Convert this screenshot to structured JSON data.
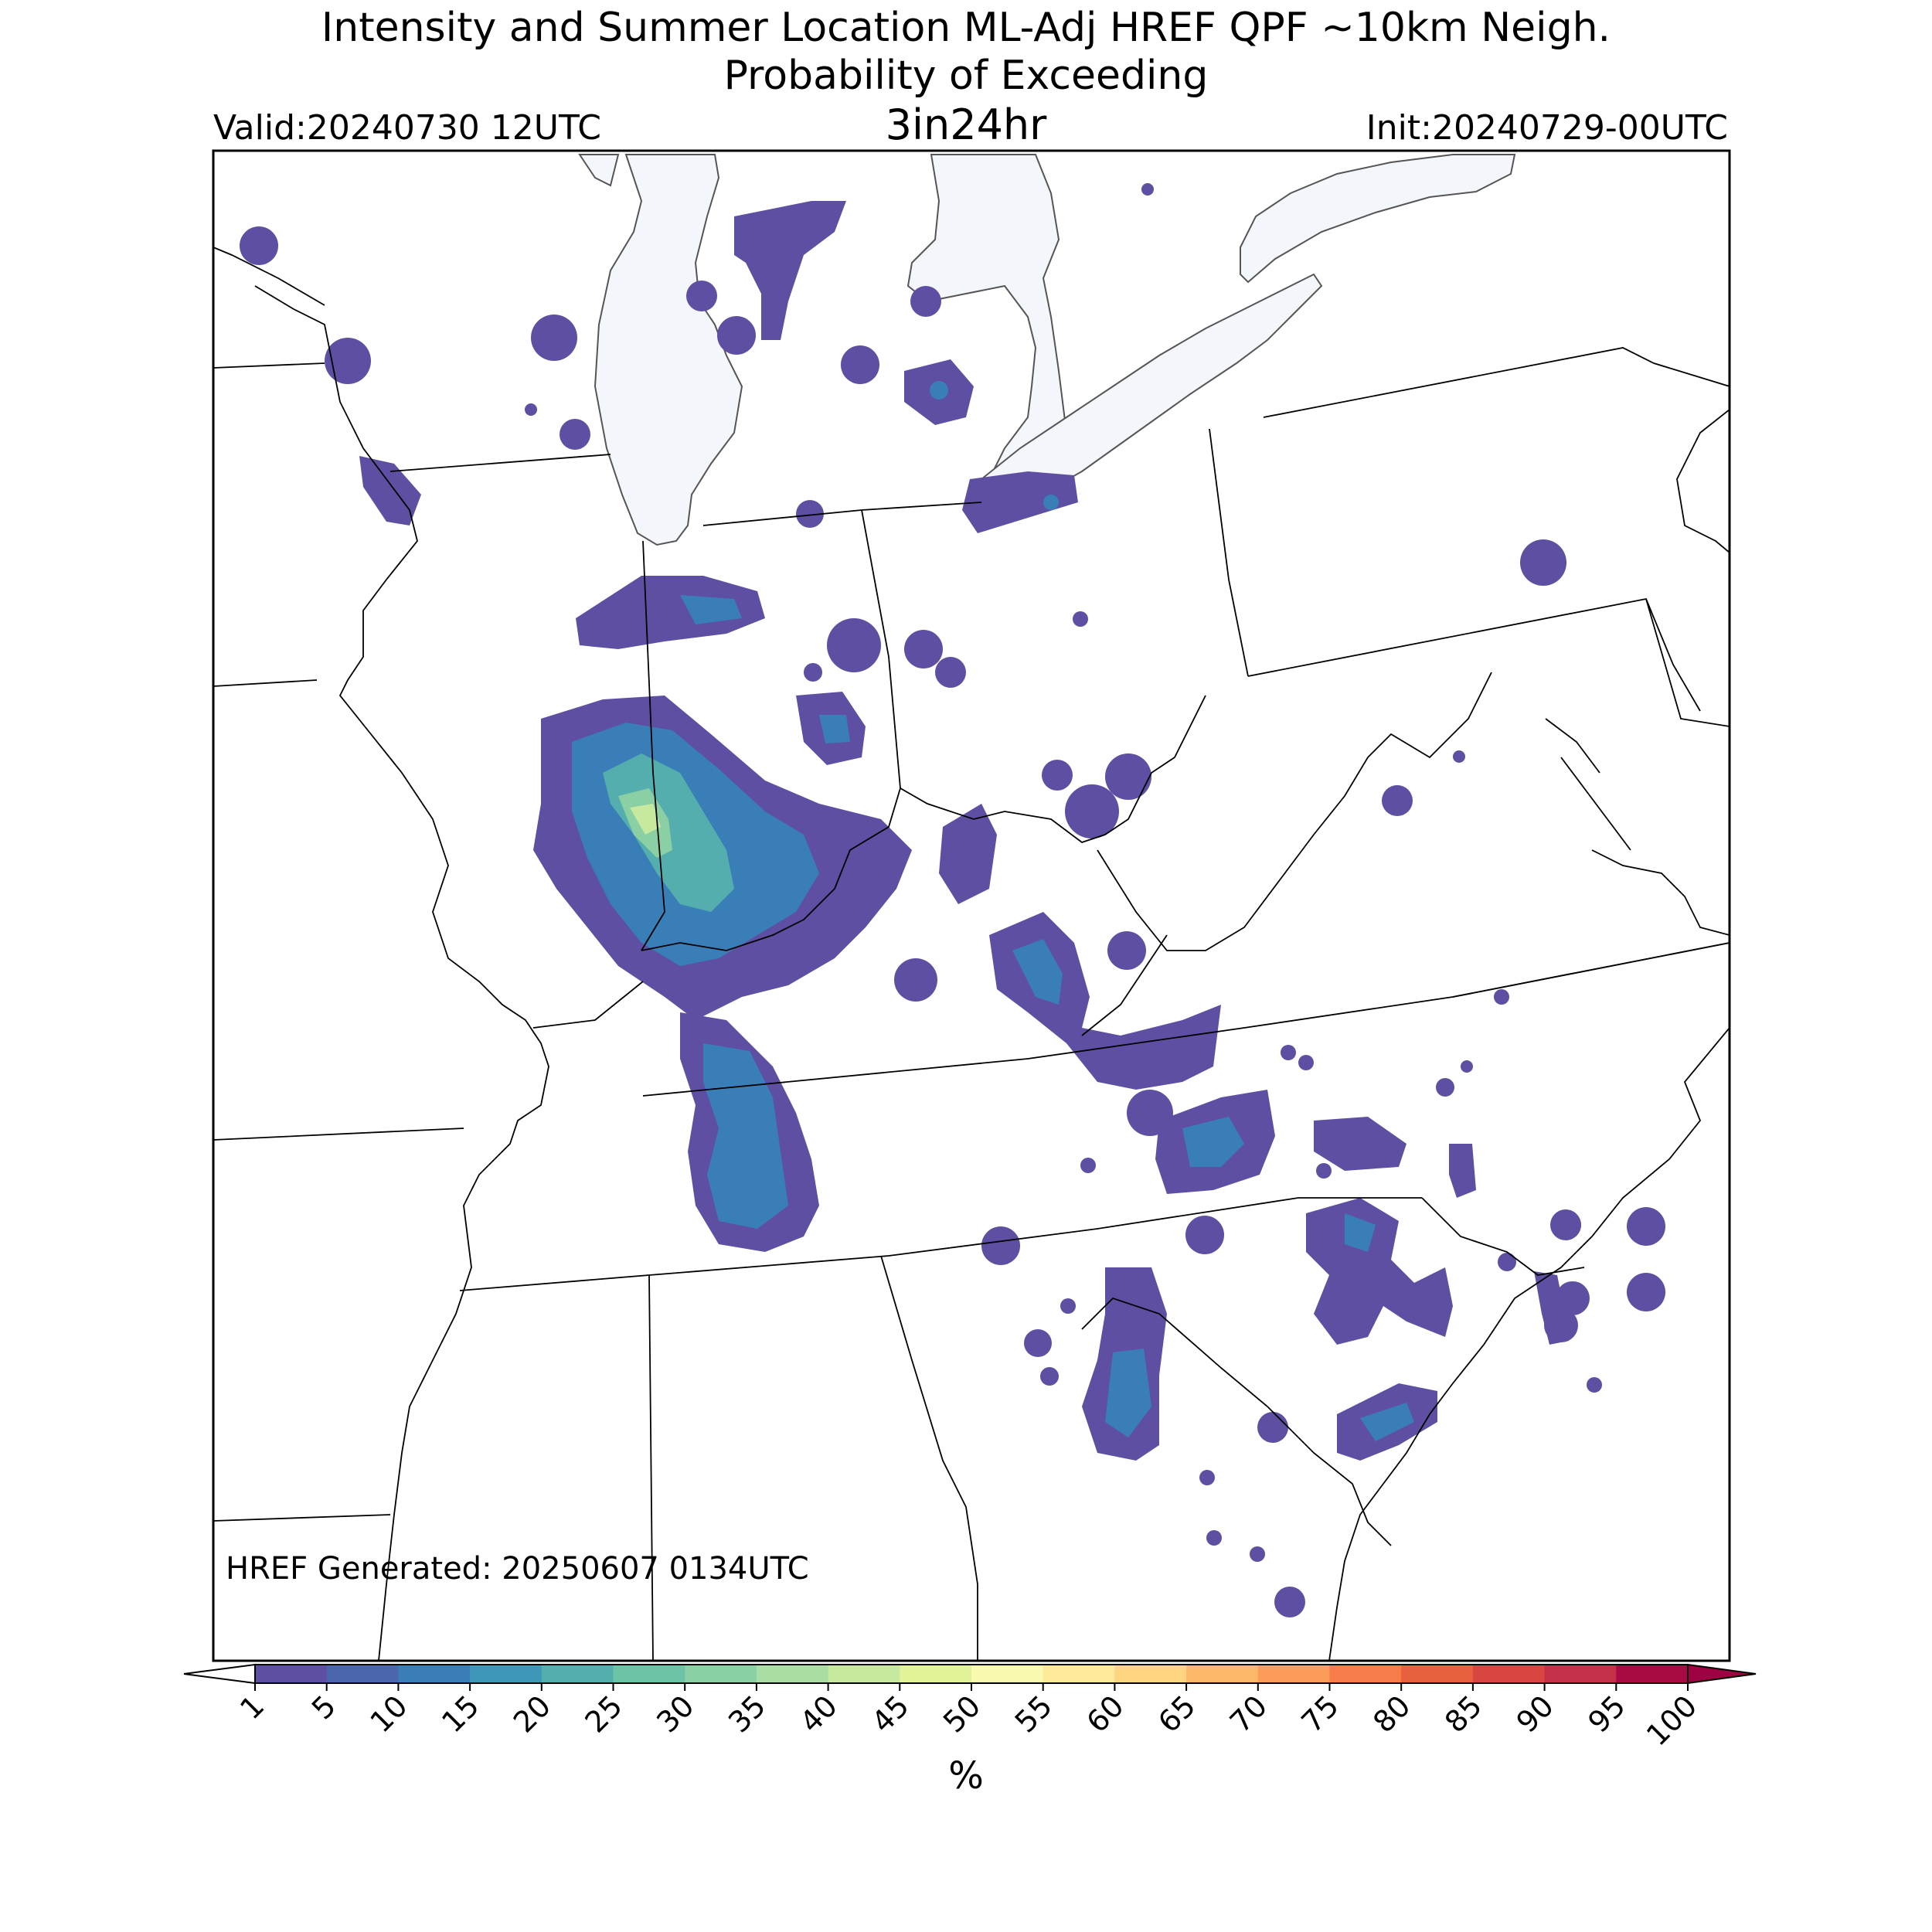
{
  "header": {
    "title_line1": "Intensity and Summer Location ML-Adj HREF QPF ~10km Neigh.",
    "title_line2": "Probability of Exceeding",
    "threshold": "3in24hr",
    "valid": "Valid:20240730 12UTC",
    "init": "Init:20240729-00UTC"
  },
  "footer": {
    "generated": "HREF Generated: 20250607 0134UTC"
  },
  "colorbar": {
    "unit": "%",
    "ticks": [
      "1",
      "5",
      "10",
      "15",
      "20",
      "25",
      "30",
      "35",
      "40",
      "45",
      "50",
      "55",
      "60",
      "65",
      "70",
      "75",
      "80",
      "85",
      "90",
      "95",
      "100"
    ],
    "colors": [
      "#5e4fa2",
      "#4b66ad",
      "#3a7eb8",
      "#3f97b7",
      "#54aead",
      "#6cc3a5",
      "#8ad0a4",
      "#a9dda3",
      "#c6e89f",
      "#e1f399",
      "#f7faaf",
      "#fee89a",
      "#fed481",
      "#fdb768",
      "#fc9c59",
      "#f67d4a",
      "#e8613e",
      "#d8463f",
      "#c33048",
      "#a80b44"
    ],
    "under_color": "#ffffff",
    "over_color": "#9e0142"
  },
  "map_colors": {
    "water": "#f3f6fb",
    "border": "#000000",
    "lake_edge": "#555555"
  }
}
